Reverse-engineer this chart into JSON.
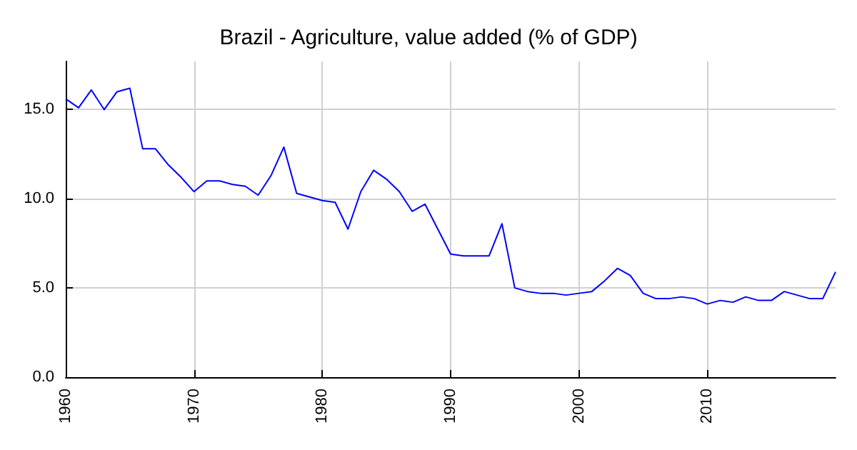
{
  "chart_data": {
    "type": "line",
    "title": "Brazil - Agriculture, value added (% of GDP)",
    "x": [
      1960,
      1961,
      1962,
      1963,
      1964,
      1965,
      1966,
      1967,
      1968,
      1969,
      1970,
      1971,
      1972,
      1973,
      1974,
      1975,
      1976,
      1977,
      1978,
      1979,
      1980,
      1981,
      1982,
      1983,
      1984,
      1985,
      1986,
      1987,
      1988,
      1989,
      1990,
      1991,
      1992,
      1993,
      1994,
      1995,
      1996,
      1997,
      1998,
      1999,
      2000,
      2001,
      2002,
      2003,
      2004,
      2005,
      2006,
      2007,
      2008,
      2009,
      2010,
      2011,
      2012,
      2013,
      2014,
      2015,
      2016,
      2017,
      2018,
      2019,
      2020
    ],
    "series": [
      {
        "color": "#0000ff",
        "values": [
          15.6,
          15.1,
          16.1,
          15.0,
          16.0,
          16.2,
          12.8,
          12.8,
          11.9,
          11.2,
          10.4,
          11.0,
          11.0,
          10.8,
          10.7,
          10.2,
          11.3,
          12.9,
          10.3,
          10.1,
          9.9,
          9.8,
          8.3,
          10.4,
          11.6,
          11.1,
          10.4,
          9.3,
          9.7,
          8.3,
          6.9,
          6.8,
          6.8,
          6.8,
          8.6,
          5.0,
          4.8,
          4.7,
          4.7,
          4.6,
          4.7,
          4.8,
          5.4,
          6.1,
          5.7,
          4.7,
          4.4,
          4.4,
          4.5,
          4.4,
          4.1,
          4.3,
          4.2,
          4.5,
          4.3,
          4.3,
          4.8,
          4.6,
          4.4,
          4.4,
          5.9
        ]
      }
    ],
    "xlim": [
      1960,
      2020
    ],
    "xticks": [
      1960,
      1970,
      1980,
      1990,
      2000,
      2010
    ],
    "ylim": [
      0,
      17.7
    ],
    "yticks": [
      {
        "value": 0,
        "label": "0.0"
      },
      {
        "value": 5,
        "label": "5.0"
      },
      {
        "value": 10,
        "label": "10.0"
      },
      {
        "value": 15,
        "label": "15.0"
      }
    ],
    "grid": true,
    "marker": "none",
    "line_style": "solid"
  }
}
